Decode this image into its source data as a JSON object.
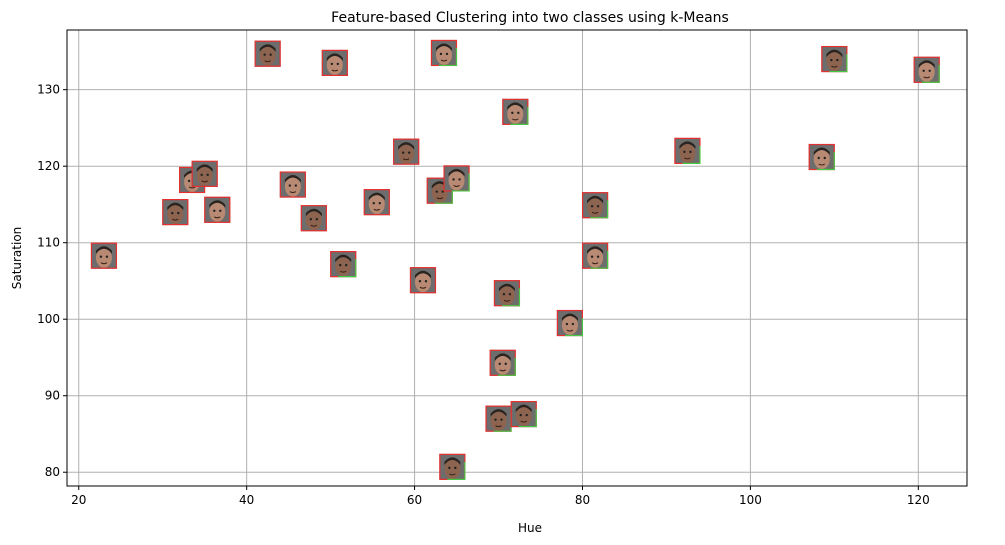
{
  "chart_data": {
    "type": "scatter",
    "title": "Feature-based Clustering into two classes using k-Means",
    "xlabel": "Hue",
    "ylabel": "Saturation",
    "xlim": [
      18.6,
      125.8
    ],
    "ylim": [
      78.2,
      137.8
    ],
    "xticks": [
      "20",
      "40",
      "60",
      "80",
      "100",
      "120"
    ],
    "xtick_values": [
      20,
      40,
      60,
      80,
      100,
      120
    ],
    "yticks": [
      "80",
      "90",
      "100",
      "110",
      "120",
      "130"
    ],
    "ytick_values": [
      80,
      90,
      100,
      110,
      120,
      130
    ],
    "grid": true,
    "marker": "face-thumbnail",
    "colors": {
      "border_red": "#e53030",
      "border_green": "#45c845",
      "grid": "#b0b0b0",
      "skin_a": "#b98a73",
      "skin_b": "#8c6450",
      "hair": "#2a2420"
    },
    "points": [
      {
        "x": 23.0,
        "y": 108.3,
        "cluster": 0
      },
      {
        "x": 31.5,
        "y": 114.0,
        "cluster": 0
      },
      {
        "x": 33.5,
        "y": 118.2,
        "cluster": 0
      },
      {
        "x": 35.0,
        "y": 119.0,
        "cluster": 0
      },
      {
        "x": 36.5,
        "y": 114.3,
        "cluster": 0
      },
      {
        "x": 42.5,
        "y": 134.7,
        "cluster": 0
      },
      {
        "x": 45.5,
        "y": 117.6,
        "cluster": 0
      },
      {
        "x": 48.0,
        "y": 113.2,
        "cluster": 0
      },
      {
        "x": 50.5,
        "y": 133.5,
        "cluster": 0
      },
      {
        "x": 51.5,
        "y": 107.2,
        "cluster": 1
      },
      {
        "x": 55.5,
        "y": 115.3,
        "cluster": 0
      },
      {
        "x": 59.0,
        "y": 121.9,
        "cluster": 0
      },
      {
        "x": 61.0,
        "y": 105.1,
        "cluster": 0
      },
      {
        "x": 63.0,
        "y": 116.8,
        "cluster": 1
      },
      {
        "x": 63.5,
        "y": 134.8,
        "cluster": 1
      },
      {
        "x": 64.5,
        "y": 80.7,
        "cluster": 1
      },
      {
        "x": 65.0,
        "y": 118.4,
        "cluster": 1
      },
      {
        "x": 70.0,
        "y": 87.0,
        "cluster": 1
      },
      {
        "x": 70.5,
        "y": 94.3,
        "cluster": 1
      },
      {
        "x": 71.0,
        "y": 103.4,
        "cluster": 1
      },
      {
        "x": 72.0,
        "y": 127.1,
        "cluster": 1
      },
      {
        "x": 73.0,
        "y": 87.6,
        "cluster": 1
      },
      {
        "x": 78.5,
        "y": 99.5,
        "cluster": 1
      },
      {
        "x": 81.5,
        "y": 114.9,
        "cluster": 1
      },
      {
        "x": 81.5,
        "y": 108.3,
        "cluster": 1
      },
      {
        "x": 92.5,
        "y": 122.0,
        "cluster": 1
      },
      {
        "x": 108.5,
        "y": 121.2,
        "cluster": 1
      },
      {
        "x": 110.0,
        "y": 134.0,
        "cluster": 1
      },
      {
        "x": 121.0,
        "y": 132.6,
        "cluster": 1
      }
    ]
  }
}
